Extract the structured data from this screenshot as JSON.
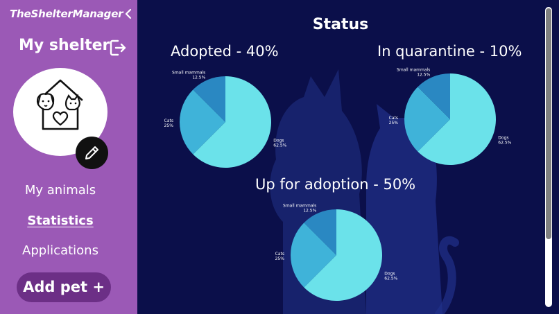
{
  "sidebar": {
    "brand": "TheShelterManager",
    "collapse_icon": "chevron-left-icon",
    "shelter_title": "My shelter",
    "logout_icon": "logout-icon",
    "avatar_icon": "house-with-dog-and-cat-icon",
    "edit_icon": "pencil-icon",
    "nav": [
      {
        "label": "My animals",
        "active": false
      },
      {
        "label": "Statistics",
        "active": true
      },
      {
        "label": "Applications",
        "active": false
      }
    ],
    "add_pet_label": "Add pet +",
    "colors": {
      "background": "#9b59b6",
      "button": "#6c2f86"
    }
  },
  "main": {
    "page_title": "Status",
    "background": "#0b0f4a"
  },
  "chart_data": [
    {
      "type": "pie",
      "title": "Adopted - 40%",
      "slices": [
        {
          "label": "Dogs",
          "percent_label": "62.5%",
          "value": 62.5,
          "color": "#6be2ea"
        },
        {
          "label": "Cats",
          "percent_label": "25%",
          "value": 25,
          "color": "#3fb3d9"
        },
        {
          "label": "Small mammals",
          "percent_label": "12.5%",
          "value": 12.5,
          "color": "#2a88c2"
        }
      ]
    },
    {
      "type": "pie",
      "title": "In quarantine - 10%",
      "slices": [
        {
          "label": "Dogs",
          "percent_label": "62.5%",
          "value": 62.5,
          "color": "#6be2ea"
        },
        {
          "label": "Cats",
          "percent_label": "25%",
          "value": 25,
          "color": "#3fb3d9"
        },
        {
          "label": "Small mammals",
          "percent_label": "12.5%",
          "value": 12.5,
          "color": "#2a88c2"
        }
      ]
    },
    {
      "type": "pie",
      "title": "Up for adoption - 50%",
      "slices": [
        {
          "label": "Dogs",
          "percent_label": "62.5%",
          "value": 62.5,
          "color": "#6be2ea"
        },
        {
          "label": "Cats",
          "percent_label": "25%",
          "value": 25,
          "color": "#3fb3d9"
        },
        {
          "label": "Small mammals",
          "percent_label": "12.5%",
          "value": 12.5,
          "color": "#2a88c2"
        }
      ]
    }
  ]
}
